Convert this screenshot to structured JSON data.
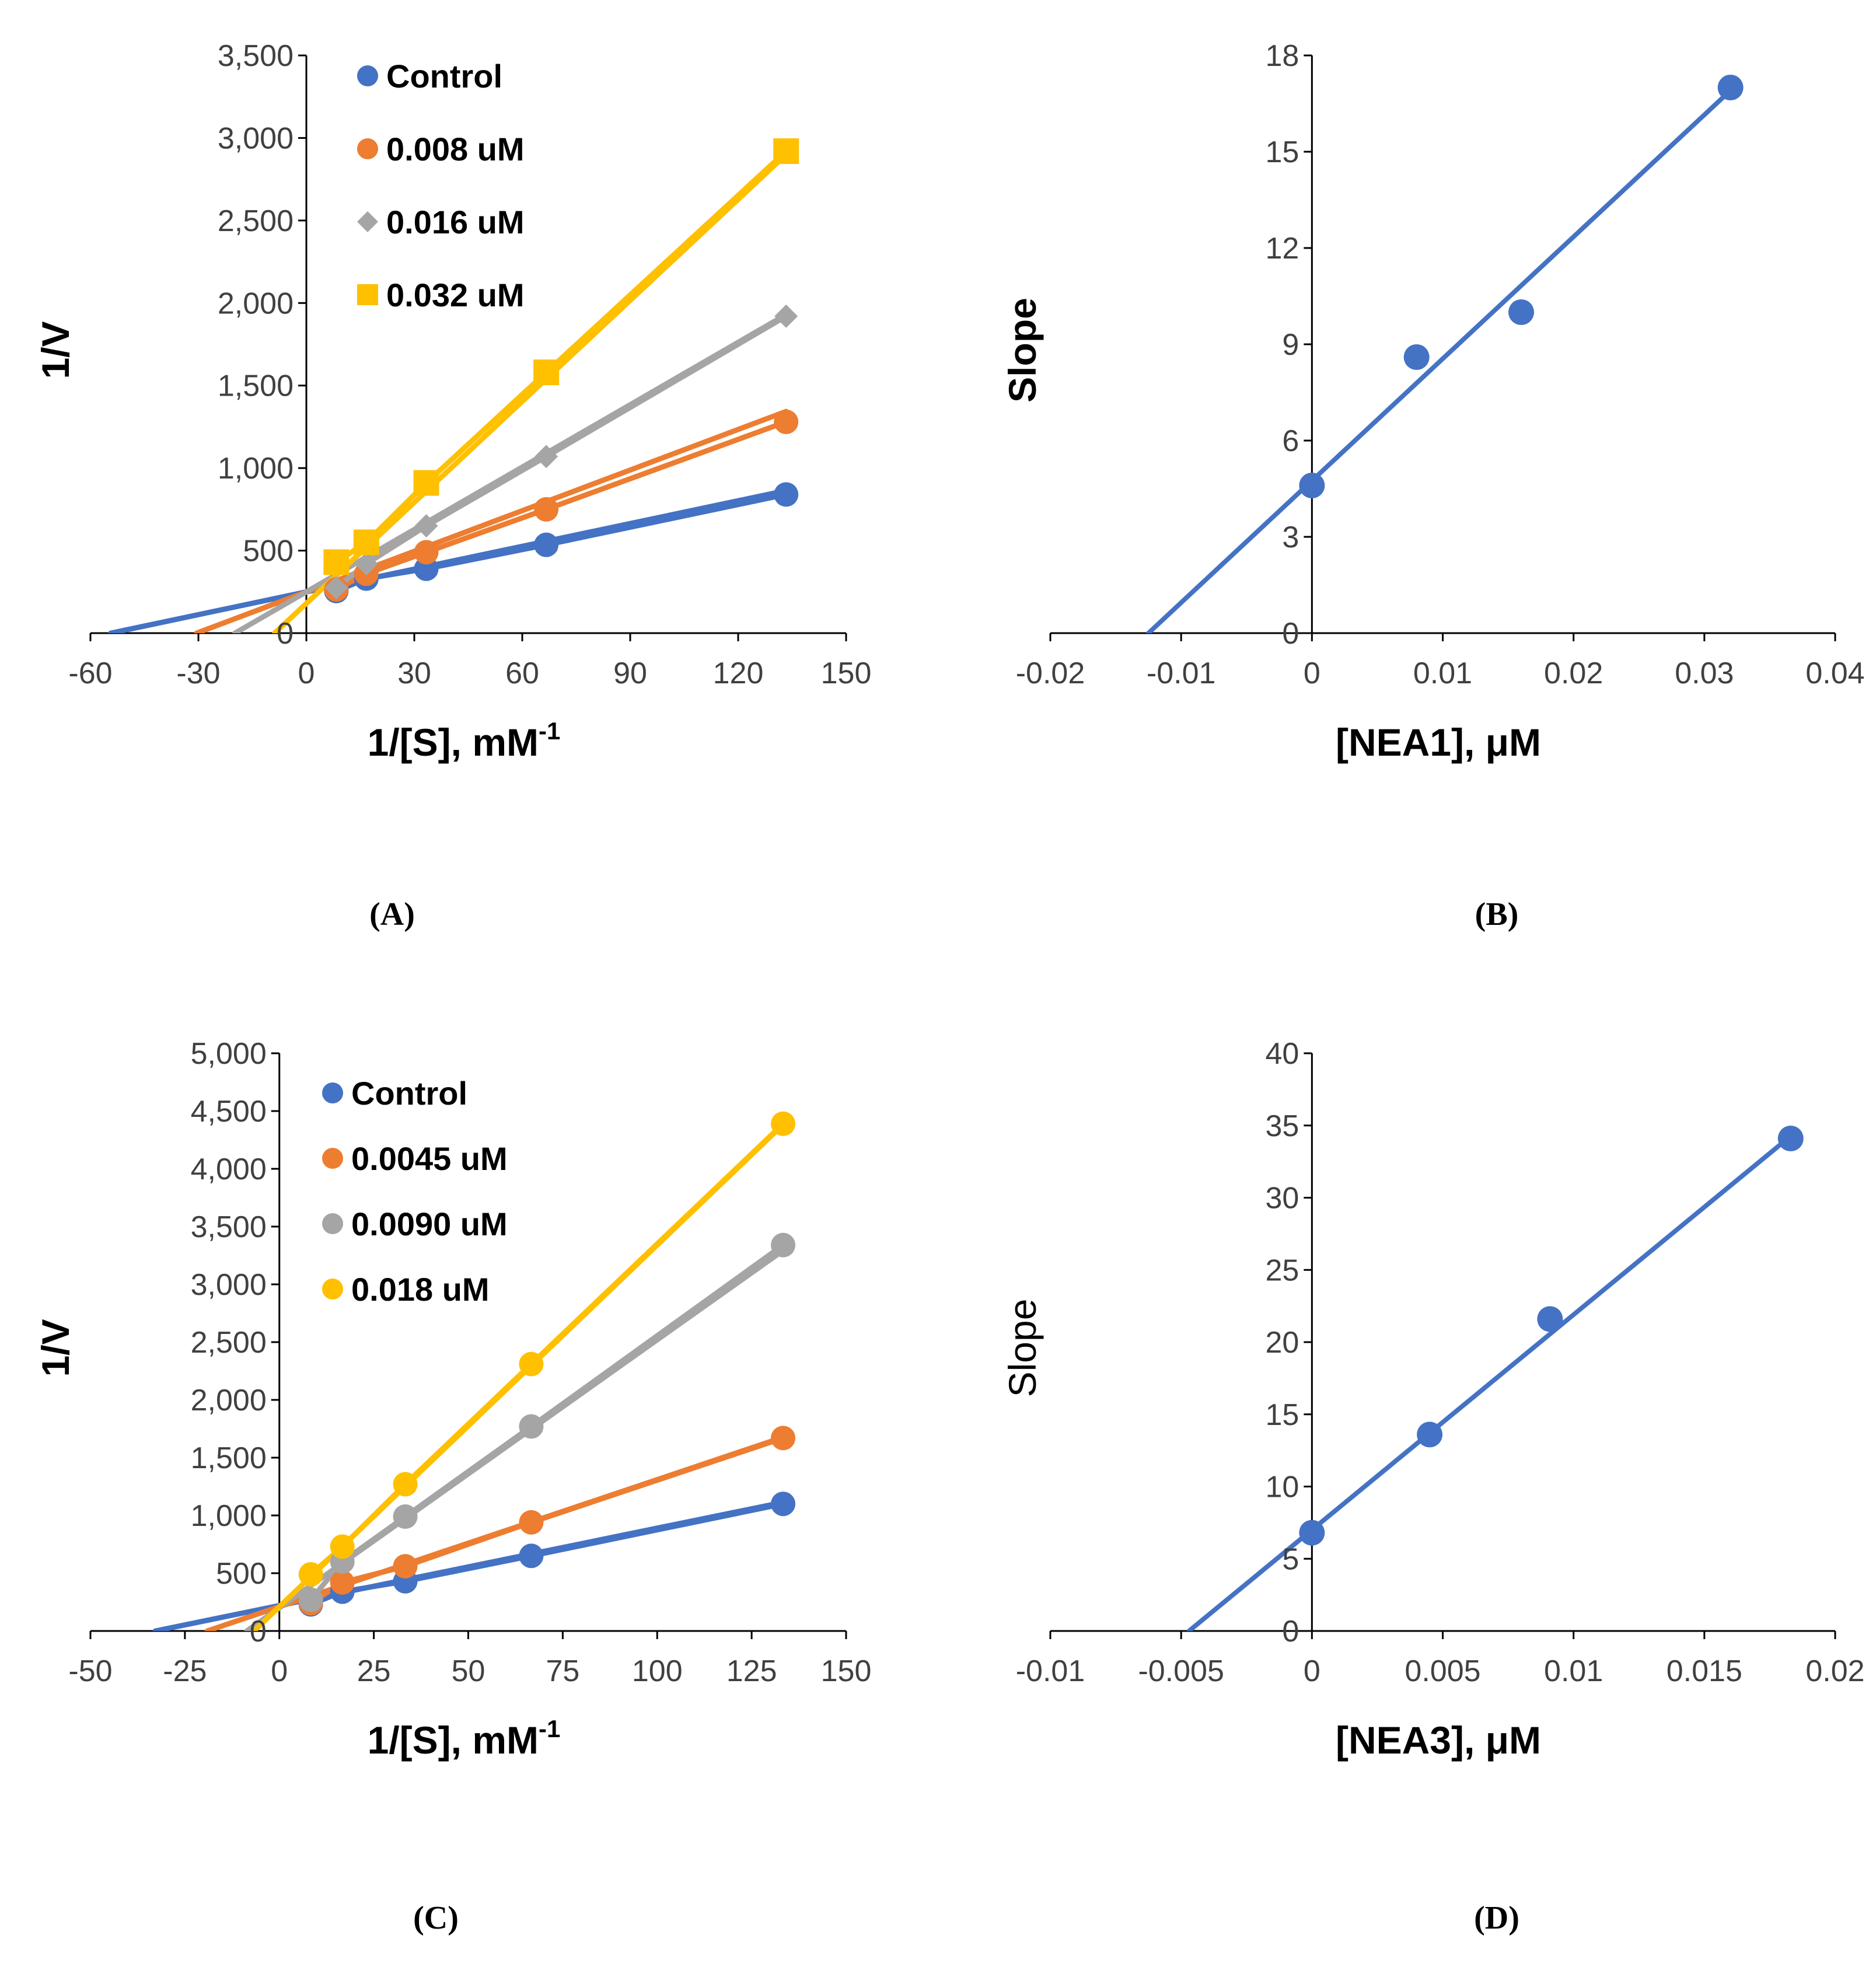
{
  "colors": {
    "blue": "#4472C4",
    "orange": "#ED7D31",
    "gray": "#A5A5A5",
    "gold": "#FFC000",
    "axis": "#000000"
  },
  "chart_data": [
    {
      "id": "A",
      "type": "line",
      "caption": "(A)",
      "xlabel": "1/[S], mM",
      "xlabel_sup": "-1",
      "ylabel": "1/V",
      "xlim": [
        -60,
        150
      ],
      "ylim": [
        0,
        3500
      ],
      "xticks": [
        -60,
        -30,
        0,
        30,
        60,
        90,
        120,
        150
      ],
      "yticks": [
        0,
        500,
        1000,
        1500,
        2000,
        2500,
        3000,
        3500
      ],
      "xtick_labels": [
        "-60",
        "-30",
        "0",
        "30",
        "60",
        "90",
        "120",
        "150"
      ],
      "ytick_labels": [
        "0",
        "500",
        "1,000",
        "1,500",
        "2,000",
        "2,500",
        "3,000",
        "3,500"
      ],
      "x": [
        8.33,
        16.67,
        33.33,
        66.67,
        133.33
      ],
      "series": [
        {
          "name": "Control",
          "color": "#4472C4",
          "marker": "circle",
          "values": [
            255,
            330,
            390,
            535,
            840
          ],
          "fit": {
            "slope": 4.6,
            "intercept": 250
          }
        },
        {
          "name": "0.008 uM",
          "color": "#ED7D31",
          "marker": "circle",
          "values": [
            265,
            360,
            490,
            750,
            1280
          ],
          "fit": {
            "slope": 8.2,
            "intercept": 250
          }
        },
        {
          "name": "0.016 uM",
          "color": "#A5A5A5",
          "marker": "diamond",
          "values": [
            275,
            420,
            650,
            1070,
            1920
          ],
          "fit": {
            "slope": 12.6,
            "intercept": 250
          }
        },
        {
          "name": "0.032 uM",
          "color": "#FFC000",
          "marker": "square",
          "values": [
            430,
            550,
            910,
            1580,
            2920
          ],
          "fit": {
            "slope": 20.4,
            "intercept": 180
          }
        }
      ]
    },
    {
      "id": "B",
      "type": "scatter",
      "caption": "(B)",
      "xlabel": "[NEA1], μM",
      "ylabel": "Slope",
      "xlim": [
        -0.02,
        0.04
      ],
      "ylim": [
        0,
        18
      ],
      "xticks": [
        -0.02,
        -0.01,
        0,
        0.01,
        0.02,
        0.03,
        0.04
      ],
      "yticks": [
        0,
        3,
        6,
        9,
        12,
        15,
        18
      ],
      "xtick_labels": [
        "-0.02",
        "-0.01",
        "0",
        "0.01",
        "0.02",
        "0.03",
        "0.04"
      ],
      "ytick_labels": [
        "0",
        "3",
        "6",
        "9",
        "12",
        "15",
        "18"
      ],
      "series": [
        {
          "name": "Slope",
          "color": "#4472C4",
          "x": [
            0,
            0.008,
            0.016,
            0.032
          ],
          "values": [
            4.6,
            8.6,
            10.0,
            17.0
          ],
          "fit": {
            "slope": 380,
            "intercept": 4.75
          }
        }
      ]
    },
    {
      "id": "C",
      "type": "line",
      "caption": "(C)",
      "xlabel": "1/[S], mM",
      "xlabel_sup": "-1",
      "ylabel": "1/V",
      "xlim": [
        -50,
        150
      ],
      "ylim": [
        0,
        5000
      ],
      "xticks": [
        -50,
        -25,
        0,
        25,
        50,
        75,
        100,
        125,
        150
      ],
      "yticks": [
        0,
        500,
        1000,
        1500,
        2000,
        2500,
        3000,
        3500,
        4000,
        4500,
        5000
      ],
      "xtick_labels": [
        "-50",
        "-25",
        "0",
        "25",
        "50",
        "75",
        "100",
        "125",
        "150"
      ],
      "ytick_labels": [
        "0",
        "500",
        "1,000",
        "1,500",
        "2,000",
        "2,500",
        "3,000",
        "3,500",
        "4,000",
        "4,500",
        "5,000"
      ],
      "x": [
        8.33,
        16.67,
        33.33,
        66.67,
        133.33
      ],
      "series": [
        {
          "name": "Control",
          "color": "#4472C4",
          "marker": "circle",
          "values": [
            230,
            340,
            430,
            650,
            1100
          ],
          "fit": {
            "slope": 6.7,
            "intercept": 220
          }
        },
        {
          "name": "0.0045 uM",
          "color": "#ED7D31",
          "marker": "circle",
          "values": [
            240,
            420,
            560,
            940,
            1670
          ],
          "fit": {
            "slope": 11.0,
            "intercept": 210
          }
        },
        {
          "name": "0.0090 uM",
          "color": "#A5A5A5",
          "marker": "circle",
          "values": [
            270,
            600,
            990,
            1770,
            3340
          ],
          "fit": {
            "slope": 23.2,
            "intercept": 200
          }
        },
        {
          "name": "0.018 uM",
          "color": "#FFC000",
          "marker": "circle",
          "values": [
            490,
            730,
            1270,
            2310,
            4390
          ],
          "fit": {
            "slope": 31.3,
            "intercept": 210
          }
        }
      ]
    },
    {
      "id": "D",
      "type": "scatter",
      "caption": "(D)",
      "xlabel": "[NEA3], μM",
      "ylabel": "Slope",
      "xlim": [
        -0.01,
        0.02
      ],
      "ylim": [
        0,
        40
      ],
      "xticks": [
        -0.01,
        -0.005,
        0,
        0.005,
        0.01,
        0.015,
        0.02
      ],
      "yticks": [
        0,
        5,
        10,
        15,
        20,
        25,
        30,
        35,
        40
      ],
      "xtick_labels": [
        "-0.01",
        "-0.005",
        "0",
        "0.005",
        "0.01",
        "0.015",
        "0.02"
      ],
      "ytick_labels": [
        "0",
        "5",
        "10",
        "15",
        "20",
        "25",
        "30",
        "35",
        "40"
      ],
      "series": [
        {
          "name": "Slope",
          "color": "#4472C4",
          "x": [
            0,
            0.0045,
            0.0091,
            0.0183
          ],
          "values": [
            6.8,
            13.6,
            21.6,
            34.1
          ],
          "fit": {
            "slope": 1490,
            "intercept": 7.0
          }
        }
      ]
    }
  ]
}
